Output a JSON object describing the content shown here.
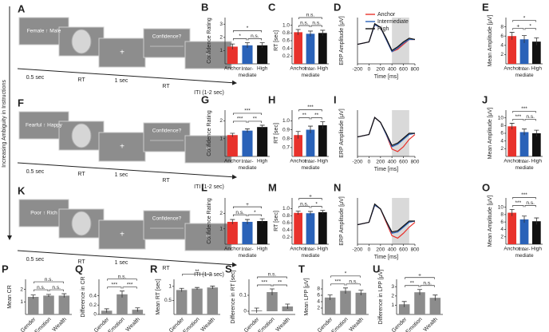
{
  "side_label": "Increasing Ambiguity in Instructions",
  "trials": [
    {
      "panel": "A",
      "cue": "Female ↑ Male",
      "fixation": "+",
      "question": "Confidence?",
      "iti": "+",
      "timeline": [
        "0.5 sec",
        "RT",
        "1 sec",
        "RT",
        "ITI (1-2 sec)"
      ]
    },
    {
      "panel": "F",
      "cue": "Fearful ↑ Happy",
      "fixation": "+",
      "question": "Confidence?",
      "iti": "+",
      "timeline": [
        "0.5 sec",
        "RT",
        "1 sec",
        "RT",
        "ITI (1-2 sec)"
      ]
    },
    {
      "panel": "K",
      "cue": "Poor ↑ Rich",
      "fixation": "+",
      "question": "Confidence?",
      "iti": "+",
      "timeline": [
        "0.5 sec",
        "RT",
        "1 sec",
        "RT",
        "ITI (1-2 sec)"
      ]
    }
  ],
  "chart_data": [
    {
      "panel": "B",
      "type": "bar",
      "ylabel": "Confidence Rating",
      "categories": [
        "Anchor",
        "Inter-\nmediate",
        "High"
      ],
      "values": [
        1.3,
        1.4,
        1.4
      ],
      "errors": [
        0.2,
        0.2,
        0.2
      ],
      "colors": [
        "#e8322c",
        "#2a62b8",
        "#111111"
      ],
      "ylim": [
        0,
        3.5
      ],
      "yticks": [
        1,
        2,
        3
      ],
      "brackets": [
        {
          "pair": [
            0,
            1
          ],
          "label": "*"
        },
        {
          "pair": [
            1,
            2
          ],
          "label": "n.s."
        },
        {
          "pair": [
            0,
            2
          ],
          "label": "*"
        }
      ]
    },
    {
      "panel": "C",
      "type": "bar",
      "ylabel": "RT [sec]",
      "categories": [
        "Anchor",
        "Inter-\nmediate",
        "High"
      ],
      "values": [
        0.82,
        0.78,
        0.8
      ],
      "errors": [
        0.07,
        0.07,
        0.07
      ],
      "colors": [
        "#e8322c",
        "#2a62b8",
        "#111111"
      ],
      "ylim": [
        0,
        1.2
      ],
      "yticks": [
        0.2,
        0.4,
        0.6,
        0.8,
        {
          "value": 1,
          "label": "1.0"
        }
      ],
      "brackets": [
        {
          "pair": [
            0,
            1
          ],
          "label": "n.s."
        },
        {
          "pair": [
            1,
            2
          ],
          "label": "n.s."
        },
        {
          "pair": [
            0,
            2
          ],
          "label": "n.s."
        }
      ]
    },
    {
      "panel": "D",
      "type": "line",
      "ylabel": "ERP Amplitude [μV]",
      "xlabel": "Time [ms]",
      "legend": true,
      "shade": [
        400,
        700
      ],
      "xlim": [
        -200,
        800
      ],
      "xticks": [
        -200,
        0,
        200,
        400,
        600,
        800
      ],
      "ylim": [
        -8,
        11
      ],
      "x": [
        -200,
        -100,
        0,
        100,
        200,
        300,
        400,
        500,
        600,
        700,
        800
      ],
      "series": [
        {
          "name": "Anchor",
          "color": "#e8322c",
          "values": [
            0,
            0.5,
            1,
            8,
            7,
            2,
            -3,
            -2,
            0,
            2,
            2
          ]
        },
        {
          "name": "Intermediate",
          "color": "#2a62b8",
          "values": [
            0,
            0.5,
            1,
            8,
            7,
            2,
            -3,
            -1.5,
            0.5,
            2,
            2
          ]
        },
        {
          "name": "High",
          "color": "#111111",
          "values": [
            0,
            0.5,
            1,
            8.5,
            7,
            2.5,
            -2.5,
            -1,
            1,
            2.5,
            2
          ]
        }
      ]
    },
    {
      "panel": "E",
      "type": "bar",
      "ylabel": "Mean Amplitude [μV]",
      "categories": [
        "Anchor",
        "Inter-\nmediate",
        "High"
      ],
      "values": [
        6,
        5.3,
        4.8
      ],
      "errors": [
        0.8,
        0.8,
        0.8
      ],
      "colors": [
        "#e8322c",
        "#2a62b8",
        "#111111"
      ],
      "ylim": [
        0,
        10
      ],
      "yticks": [
        2,
        4,
        6,
        8
      ],
      "brackets": [
        {
          "pair": [
            0,
            1
          ],
          "label": "+"
        },
        {
          "pair": [
            1,
            2
          ],
          "label": "*"
        },
        {
          "pair": [
            0,
            2
          ],
          "label": "*"
        }
      ]
    },
    {
      "panel": "G",
      "type": "bar",
      "ylabel": "Confidence Rating",
      "categories": [
        "Anchor",
        "Inter-\nmediate",
        "High"
      ],
      "values": [
        1.2,
        1.45,
        1.65
      ],
      "errors": [
        0.1,
        0.1,
        0.1
      ],
      "colors": [
        "#e8322c",
        "#2a62b8",
        "#111111"
      ],
      "ylim": [
        0,
        2.6
      ],
      "yticks": [
        1,
        2
      ],
      "brackets": [
        {
          "pair": [
            0,
            1
          ],
          "label": "***"
        },
        {
          "pair": [
            1,
            2
          ],
          "label": "**"
        },
        {
          "pair": [
            0,
            2
          ],
          "label": "***"
        }
      ]
    },
    {
      "panel": "H",
      "type": "bar",
      "ylabel": "RT [sec]",
      "categories": [
        "Anchor",
        "Inter-\nmediate",
        "High"
      ],
      "values": [
        0.84,
        0.9,
        0.95
      ],
      "errors": [
        0.04,
        0.04,
        0.04
      ],
      "colors": [
        "#e8322c",
        "#2a62b8",
        "#111111"
      ],
      "ylim": [
        0.6,
        1.12
      ],
      "yticks": [
        0.7,
        0.8,
        0.9,
        {
          "value": 1,
          "label": "1.0"
        }
      ],
      "brackets": [
        {
          "pair": [
            0,
            1
          ],
          "label": "**"
        },
        {
          "pair": [
            1,
            2
          ],
          "label": "**"
        },
        {
          "pair": [
            0,
            2
          ],
          "label": "***"
        }
      ]
    },
    {
      "panel": "I",
      "type": "line",
      "ylabel": "ERP Amplitude [μV]",
      "xlabel": "Time [ms]",
      "legend": false,
      "shade": [
        400,
        700
      ],
      "xlim": [
        -200,
        800
      ],
      "xticks": [
        -200,
        0,
        200,
        400,
        600,
        800
      ],
      "ylim": [
        -8,
        11
      ],
      "x": [
        -200,
        -100,
        0,
        100,
        200,
        300,
        400,
        500,
        600,
        700,
        800
      ],
      "series": [
        {
          "name": "Anchor",
          "color": "#e8322c",
          "values": [
            0,
            0.5,
            1,
            8,
            6,
            1,
            -5,
            -6,
            -4,
            -1,
            1
          ]
        },
        {
          "name": "Intermediate",
          "color": "#2a62b8",
          "values": [
            0,
            0.5,
            1,
            8,
            6,
            1,
            -4,
            -3,
            -1,
            1,
            1.5
          ]
        },
        {
          "name": "High",
          "color": "#111111",
          "values": [
            0,
            0.5,
            1,
            8,
            6,
            1.5,
            -3.5,
            -2.5,
            -0.5,
            1.5,
            1.5
          ]
        }
      ]
    },
    {
      "panel": "J",
      "type": "bar",
      "ylabel": "Mean Amplitude [μV]",
      "categories": [
        "Anchor",
        "Inter-\nmediate",
        "High"
      ],
      "values": [
        7.8,
        6.3,
        6
      ],
      "errors": [
        0.8,
        0.8,
        0.8
      ],
      "colors": [
        "#e8322c",
        "#2a62b8",
        "#111111"
      ],
      "ylim": [
        0,
        12
      ],
      "yticks": [
        2,
        4,
        6,
        8,
        10
      ],
      "brackets": [
        {
          "pair": [
            0,
            1
          ],
          "label": "***"
        },
        {
          "pair": [
            1,
            2
          ],
          "label": "n.s."
        },
        {
          "pair": [
            0,
            2
          ],
          "label": "***"
        }
      ]
    },
    {
      "panel": "L",
      "type": "bar",
      "ylabel": "Confidence Rating",
      "categories": [
        "Anchor",
        "Inter-\nmediate",
        "High"
      ],
      "values": [
        1.45,
        1.45,
        1.5
      ],
      "errors": [
        0.15,
        0.15,
        0.15
      ],
      "colors": [
        "#e8322c",
        "#2a62b8",
        "#111111"
      ],
      "ylim": [
        0,
        3
      ],
      "yticks": [
        1,
        2
      ],
      "brackets": [
        {
          "pair": [
            0,
            1
          ],
          "label": "n.s."
        },
        {
          "pair": [
            1,
            2
          ],
          "label": "*"
        },
        {
          "pair": [
            0,
            2
          ],
          "label": "+"
        }
      ]
    },
    {
      "panel": "M",
      "type": "bar",
      "ylabel": "RT [sec]",
      "categories": [
        "Anchor",
        "Inter-\nmediate",
        "High"
      ],
      "values": [
        0.88,
        0.87,
        0.9
      ],
      "errors": [
        0.05,
        0.05,
        0.05
      ],
      "colors": [
        "#e8322c",
        "#2a62b8",
        "#111111"
      ],
      "ylim": [
        0,
        1.3
      ],
      "yticks": [
        0.2,
        0.4,
        0.6,
        0.8,
        {
          "value": 1,
          "label": "1.0"
        }
      ],
      "brackets": [
        {
          "pair": [
            0,
            1
          ],
          "label": "n.s."
        },
        {
          "pair": [
            1,
            2
          ],
          "label": "*"
        },
        {
          "pair": [
            0,
            2
          ],
          "label": "+"
        }
      ]
    },
    {
      "panel": "N",
      "type": "line",
      "ylabel": "ERP Amplitude [μV]",
      "xlabel": "Time [ms]",
      "legend": false,
      "shade": [
        400,
        700
      ],
      "xlim": [
        -200,
        800
      ],
      "xticks": [
        -200,
        0,
        200,
        400,
        600,
        800
      ],
      "ylim": [
        -8,
        11
      ],
      "x": [
        -200,
        -100,
        0,
        100,
        200,
        300,
        400,
        500,
        600,
        700,
        800
      ],
      "series": [
        {
          "name": "Anchor",
          "color": "#e8322c",
          "values": [
            0,
            0.5,
            1,
            8,
            6.5,
            1,
            -4.5,
            -5.5,
            -3.5,
            -1,
            1
          ]
        },
        {
          "name": "Intermediate",
          "color": "#2a62b8",
          "values": [
            0,
            0.5,
            1,
            8,
            6.5,
            1.5,
            -3.5,
            -3,
            -1,
            1,
            1.5
          ]
        },
        {
          "name": "High",
          "color": "#111111",
          "values": [
            0,
            0.5,
            1,
            8.5,
            6.5,
            1.5,
            -3,
            -2.5,
            -0.5,
            1.5,
            1.5
          ]
        }
      ]
    },
    {
      "panel": "O",
      "type": "bar",
      "ylabel": "Mean Amplitude [μV]",
      "categories": [
        "Anchor",
        "Inter-\nmediate",
        "High"
      ],
      "values": [
        8.5,
        6.7,
        6.2
      ],
      "errors": [
        0.9,
        0.9,
        0.9
      ],
      "colors": [
        "#e8322c",
        "#2a62b8",
        "#111111"
      ],
      "ylim": [
        0,
        12.5
      ],
      "yticks": [
        2,
        4,
        6,
        8,
        10
      ],
      "brackets": [
        {
          "pair": [
            0,
            1
          ],
          "label": "***"
        },
        {
          "pair": [
            1,
            2
          ],
          "label": "n.s."
        },
        {
          "pair": [
            0,
            2
          ],
          "label": "***"
        }
      ]
    },
    {
      "panel": "P",
      "type": "bar",
      "ylabel": "Mean CR",
      "categories": [
        "Gender",
        "Emotion",
        "Wealth"
      ],
      "values": [
        1.4,
        1.5,
        1.5
      ],
      "errors": [
        0.15,
        0.1,
        0.15
      ],
      "colors": [
        "#8c8c8c",
        "#8c8c8c",
        "#8c8c8c"
      ],
      "ylim": [
        0,
        2.8
      ],
      "yticks": [
        1,
        2
      ],
      "brackets": [
        {
          "pair": [
            0,
            1
          ],
          "label": "n.s."
        },
        {
          "pair": [
            1,
            2
          ],
          "label": "n.s."
        },
        {
          "pair": [
            0,
            2
          ],
          "label": "n.s."
        }
      ]
    },
    {
      "panel": "Q",
      "type": "bar",
      "ylabel": "Difference in CR",
      "categories": [
        "Gender",
        "Emotion",
        "Wealth"
      ],
      "values": [
        0.08,
        0.43,
        0.1
      ],
      "errors": [
        0.04,
        0.07,
        0.04
      ],
      "colors": [
        "#8c8c8c",
        "#8c8c8c",
        "#8c8c8c"
      ],
      "ylim": [
        0,
        0.75
      ],
      "yticks": [
        0,
        0.2,
        0.4
      ],
      "brackets": [
        {
          "pair": [
            0,
            1
          ],
          "label": "***"
        },
        {
          "pair": [
            1,
            2
          ],
          "label": "***"
        },
        {
          "pair": [
            0,
            2
          ],
          "label": "n.s."
        }
      ]
    },
    {
      "panel": "R",
      "type": "bar",
      "ylabel": "Mean RT [sec]",
      "categories": [
        "Gender",
        "Emotion",
        "Wealth"
      ],
      "values": [
        0.87,
        0.92,
        0.96
      ],
      "errors": [
        0.06,
        0.04,
        0.05
      ],
      "colors": [
        "#8c8c8c",
        "#8c8c8c",
        "#8c8c8c"
      ],
      "ylim": [
        0,
        1.25
      ],
      "yticks": [
        0.5,
        1
      ],
      "brackets": [
        {
          "pair": [
            0,
            2
          ],
          "label": "**"
        }
      ]
    },
    {
      "panel": "S",
      "type": "bar",
      "ylabel": "Difference in RT [sec]",
      "categories": [
        "Gender",
        "Emotion",
        "Wealth"
      ],
      "values": [
        0.005,
        0.12,
        0.03
      ],
      "errors": [
        0.015,
        0.02,
        0.015
      ],
      "colors": [
        "#8c8c8c",
        "#8c8c8c",
        "#8c8c8c"
      ],
      "ylim": [
        -0.02,
        0.2
      ],
      "yticks": [
        0,
        0.1
      ],
      "brackets": [
        {
          "pair": [
            0,
            1
          ],
          "label": "***"
        },
        {
          "pair": [
            1,
            2
          ],
          "label": "**"
        },
        {
          "pair": [
            0,
            2
          ],
          "label": "n.s."
        }
      ]
    },
    {
      "panel": "T",
      "type": "bar",
      "ylabel": "Mean LPP [μV]",
      "categories": [
        "Gender",
        "Emotion",
        "Wealth"
      ],
      "values": [
        5.3,
        7.4,
        6.8
      ],
      "errors": [
        0.8,
        0.9,
        0.8
      ],
      "colors": [
        "#8c8c8c",
        "#8c8c8c",
        "#8c8c8c"
      ],
      "ylim": [
        0,
        11
      ],
      "yticks": [
        2,
        4,
        6,
        8
      ],
      "brackets": [
        {
          "pair": [
            0,
            1
          ],
          "label": "***"
        },
        {
          "pair": [
            1,
            2
          ],
          "label": "n.s."
        },
        {
          "pair": [
            0,
            2
          ],
          "label": "*"
        }
      ]
    },
    {
      "panel": "U",
      "type": "bar",
      "ylabel": "Difference in LPP [μV]",
      "categories": [
        "Gender",
        "Emotion",
        "Wealth"
      ],
      "values": [
        1.1,
        2.4,
        1.8
      ],
      "errors": [
        0.3,
        0.3,
        0.3
      ],
      "colors": [
        "#8c8c8c",
        "#8c8c8c",
        "#8c8c8c"
      ],
      "ylim": [
        0,
        3.8
      ],
      "yticks": [
        1,
        2,
        3
      ],
      "brackets": [
        {
          "pair": [
            0,
            1
          ],
          "label": "**"
        },
        {
          "pair": [
            1,
            2
          ],
          "label": "n.s."
        },
        {
          "pair": [
            0,
            2
          ],
          "label": "+"
        }
      ]
    }
  ]
}
